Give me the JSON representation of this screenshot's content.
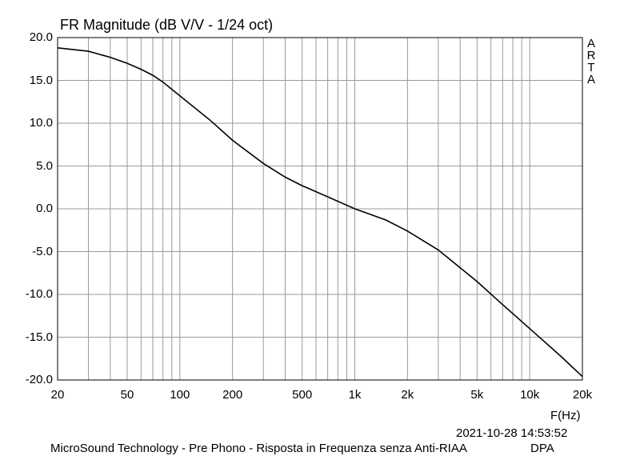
{
  "chart_data": {
    "type": "line",
    "title": "FR Magnitude (dB V/V - 1/24 oct)",
    "xlabel": "F(Hz)",
    "ylabel": "",
    "xscale": "log",
    "xlim": [
      20,
      20000
    ],
    "ylim": [
      -20,
      20
    ],
    "grid": true,
    "x_tick_values": [
      20,
      50,
      100,
      200,
      500,
      1000,
      2000,
      5000,
      10000,
      20000
    ],
    "x_tick_labels": [
      "20",
      "50",
      "100",
      "200",
      "500",
      "1k",
      "2k",
      "5k",
      "10k",
      "20k"
    ],
    "y_tick_values": [
      20,
      15,
      10,
      5,
      0,
      -5,
      -10,
      -15,
      -20
    ],
    "y_tick_labels": [
      "20.0",
      "15.0",
      "10.0",
      "5.0",
      "0.0",
      "-5.0",
      "-10.0",
      "-15.0",
      "-20.0"
    ],
    "series": [
      {
        "x": [
          20,
          30,
          40,
          50,
          60,
          70,
          80,
          100,
          150,
          200,
          300,
          400,
          500,
          700,
          1000,
          1500,
          2000,
          3000,
          5000,
          7000,
          10000,
          15000,
          20000
        ],
        "y": [
          18.8,
          18.4,
          17.7,
          17.0,
          16.3,
          15.6,
          14.8,
          13.2,
          10.3,
          8.0,
          5.3,
          3.7,
          2.7,
          1.4,
          0.0,
          -1.3,
          -2.6,
          -4.8,
          -8.5,
          -11.2,
          -14.0,
          -17.2,
          -19.6
        ]
      }
    ]
  },
  "brand_letters": [
    "A",
    "R",
    "T",
    "A"
  ],
  "timestamp": "2021-10-28  14:53:52",
  "footer": "MicroSound Technology - Pre Phono - Risposta in Frequenza senza Anti-RIAA",
  "footer_right": "DPA",
  "colors": {
    "background": "#ffffff",
    "grid": "#9a9a9a",
    "line": "#000000"
  }
}
